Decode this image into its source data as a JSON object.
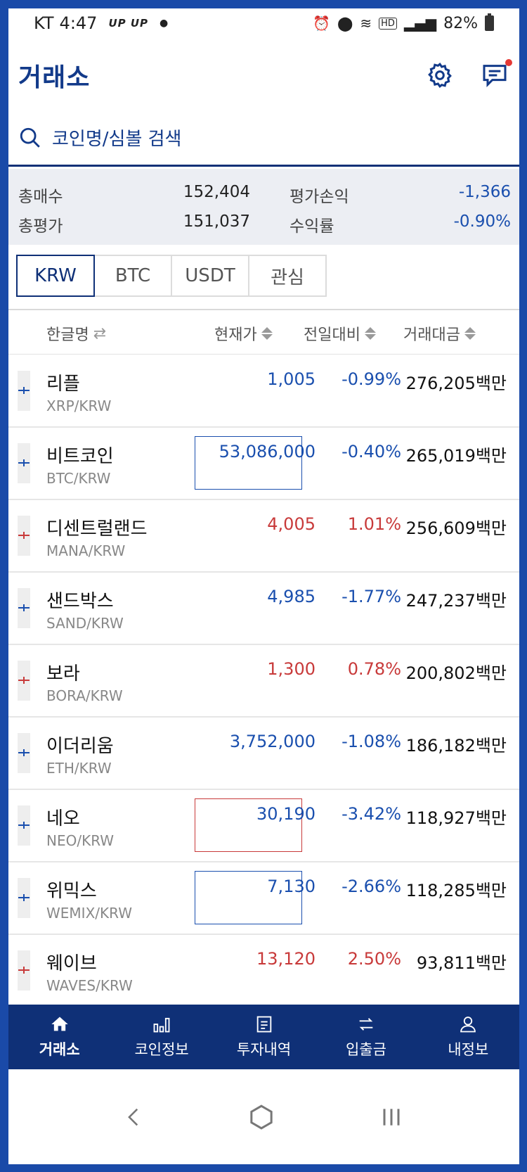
{
  "status_bar": {
    "carrier": "KT",
    "time": "4:47",
    "tag": "UP UP",
    "battery": "82%"
  },
  "header": {
    "title": "거래소"
  },
  "search": {
    "placeholder": "코인명/심볼 검색"
  },
  "summary": {
    "total_buy_label": "총매수",
    "total_buy": "152,404",
    "total_eval_label": "총평가",
    "total_eval": "151,037",
    "pnl_label": "평가손익",
    "pnl": "-1,366",
    "return_label": "수익률",
    "return": "-0.90%"
  },
  "tabs": [
    {
      "label": "KRW",
      "active": true
    },
    {
      "label": "BTC",
      "active": false
    },
    {
      "label": "USDT",
      "active": false
    },
    {
      "label": "관심",
      "active": false
    }
  ],
  "columns": {
    "name": "한글명",
    "price": "현재가",
    "change": "전일대비",
    "volume": "거래대금"
  },
  "rows": [
    {
      "name": "리플",
      "symbol": "XRP/KRW",
      "price": "1,005",
      "change": "-0.99%",
      "volume": "276,205백만",
      "dir": "down",
      "box": ""
    },
    {
      "name": "비트코인",
      "symbol": "BTC/KRW",
      "price": "53,086,000",
      "change": "-0.40%",
      "volume": "265,019백만",
      "dir": "down",
      "box": "down"
    },
    {
      "name": "디센트럴랜드",
      "symbol": "MANA/KRW",
      "price": "4,005",
      "change": "1.01%",
      "volume": "256,609백만",
      "dir": "up",
      "box": ""
    },
    {
      "name": "샌드박스",
      "symbol": "SAND/KRW",
      "price": "4,985",
      "change": "-1.77%",
      "volume": "247,237백만",
      "dir": "down",
      "box": ""
    },
    {
      "name": "보라",
      "symbol": "BORA/KRW",
      "price": "1,300",
      "change": "0.78%",
      "volume": "200,802백만",
      "dir": "up",
      "box": ""
    },
    {
      "name": "이더리움",
      "symbol": "ETH/KRW",
      "price": "3,752,000",
      "change": "-1.08%",
      "volume": "186,182백만",
      "dir": "down",
      "box": ""
    },
    {
      "name": "네오",
      "symbol": "NEO/KRW",
      "price": "30,190",
      "change": "-3.42%",
      "volume": "118,927백만",
      "dir": "down",
      "box": "up"
    },
    {
      "name": "위믹스",
      "symbol": "WEMIX/KRW",
      "price": "7,130",
      "change": "-2.66%",
      "volume": "118,285백만",
      "dir": "down",
      "box": "down"
    },
    {
      "name": "웨이브",
      "symbol": "WAVES/KRW",
      "price": "13,120",
      "change": "2.50%",
      "volume": "93,811백만",
      "dir": "up",
      "box": ""
    }
  ],
  "bottom_nav": [
    {
      "label": "거래소",
      "icon": "home-icon",
      "active": true
    },
    {
      "label": "코인정보",
      "icon": "bar-chart-icon",
      "active": false
    },
    {
      "label": "투자내역",
      "icon": "document-icon",
      "active": false
    },
    {
      "label": "입출금",
      "icon": "transfer-icon",
      "active": false
    },
    {
      "label": "내정보",
      "icon": "person-icon",
      "active": false
    }
  ],
  "colors": {
    "brand": "#0f3077",
    "up": "#c83a3a",
    "down": "#1a4fae"
  }
}
